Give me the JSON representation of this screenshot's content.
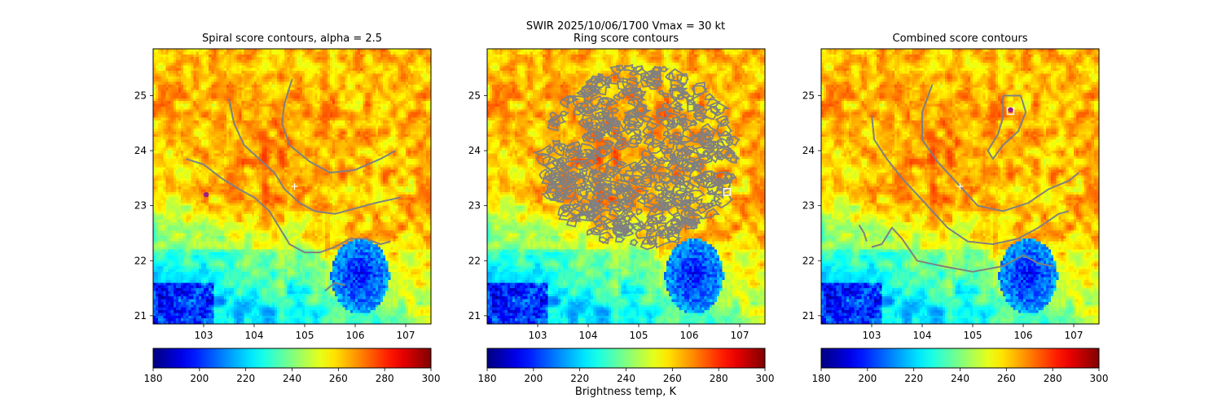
{
  "suptitle": "SWIR  2025/10/06/1700    Vmax = 30 kt",
  "colorbar_label": "Brightness temp, K",
  "chart_data": [
    {
      "type": "heatmap",
      "title": "Spiral score contours, alpha =  2.5",
      "xlim": [
        102.0,
        107.5
      ],
      "ylim": [
        20.85,
        25.85
      ],
      "x_ticks": [
        "103",
        "104",
        "105",
        "106",
        "107"
      ],
      "y_ticks": [
        "21",
        "22",
        "23",
        "24",
        "25"
      ],
      "contours": [
        [
          [
            103.5,
            24.95
          ],
          [
            103.6,
            24.5
          ],
          [
            103.8,
            24.1
          ],
          [
            104.1,
            23.85
          ],
          [
            104.4,
            23.6
          ],
          [
            104.6,
            23.3
          ],
          [
            104.9,
            23.05
          ],
          [
            105.2,
            22.9
          ],
          [
            105.6,
            22.85
          ],
          [
            106.0,
            22.95
          ],
          [
            106.4,
            23.05
          ],
          [
            106.9,
            23.15
          ]
        ],
        [
          [
            104.75,
            25.3
          ],
          [
            104.6,
            24.85
          ],
          [
            104.55,
            24.5
          ],
          [
            104.7,
            24.1
          ],
          [
            105.1,
            23.8
          ],
          [
            105.5,
            23.6
          ],
          [
            106.0,
            23.65
          ],
          [
            106.5,
            23.85
          ],
          [
            106.8,
            24.0
          ]
        ],
        [
          [
            102.65,
            23.85
          ],
          [
            103.0,
            23.75
          ],
          [
            103.35,
            23.5
          ],
          [
            103.7,
            23.3
          ],
          [
            104.0,
            23.15
          ],
          [
            104.3,
            22.9
          ],
          [
            104.5,
            22.6
          ],
          [
            104.7,
            22.3
          ],
          [
            105.0,
            22.15
          ],
          [
            105.3,
            22.15
          ],
          [
            105.6,
            22.25
          ],
          [
            105.9,
            22.4
          ],
          [
            106.2,
            22.4
          ],
          [
            106.5,
            22.3
          ],
          [
            106.7,
            22.35
          ]
        ],
        [
          [
            105.4,
            21.45
          ],
          [
            105.6,
            21.6
          ],
          [
            105.8,
            21.55
          ]
        ]
      ],
      "markers": [
        {
          "symbol": "plus",
          "x": 104.8,
          "y": 23.35,
          "color": "#ffffff"
        },
        {
          "symbol": "dot",
          "x": 103.05,
          "y": 23.2,
          "color": "#9b1d8a"
        }
      ]
    },
    {
      "type": "heatmap",
      "title": "Ring score contours",
      "xlim": [
        102.0,
        107.5
      ],
      "ylim": [
        20.85,
        25.85
      ],
      "x_ticks": [
        "103",
        "104",
        "105",
        "106",
        "107"
      ],
      "y_ticks": [
        "21",
        "22",
        "23",
        "24",
        "25"
      ],
      "ring_region": {
        "center": [
          105.0,
          23.9
        ],
        "radius_lon": 1.9,
        "radius_lat": 1.65
      },
      "markers": [
        {
          "symbol": "square",
          "x": 106.75,
          "y": 23.25,
          "color": "#ffffff"
        }
      ]
    },
    {
      "type": "heatmap",
      "title": "Combined score contours",
      "xlim": [
        102.0,
        107.5
      ],
      "ylim": [
        20.85,
        25.85
      ],
      "x_ticks": [
        "103",
        "104",
        "105",
        "106",
        "107"
      ],
      "y_ticks": [
        "21",
        "22",
        "23",
        "24",
        "25"
      ],
      "contours": [
        [
          [
            103.0,
            24.65
          ],
          [
            103.05,
            24.2
          ],
          [
            103.3,
            23.85
          ],
          [
            103.6,
            23.5
          ],
          [
            103.9,
            23.2
          ],
          [
            104.2,
            22.9
          ],
          [
            104.5,
            22.6
          ],
          [
            104.9,
            22.35
          ],
          [
            105.4,
            22.3
          ],
          [
            105.9,
            22.4
          ],
          [
            106.3,
            22.6
          ],
          [
            106.7,
            22.85
          ],
          [
            106.9,
            22.9
          ]
        ],
        [
          [
            104.2,
            25.2
          ],
          [
            104.0,
            24.7
          ],
          [
            104.0,
            24.2
          ],
          [
            104.3,
            23.8
          ],
          [
            104.7,
            23.4
          ],
          [
            105.1,
            23.0
          ],
          [
            105.6,
            22.9
          ],
          [
            106.1,
            23.05
          ],
          [
            106.5,
            23.3
          ],
          [
            106.9,
            23.45
          ],
          [
            107.1,
            23.6
          ]
        ],
        [
          [
            105.6,
            25.0
          ],
          [
            105.95,
            25.0
          ],
          [
            106.05,
            24.7
          ],
          [
            105.9,
            24.35
          ],
          [
            105.6,
            24.1
          ],
          [
            105.4,
            23.85
          ],
          [
            105.3,
            24.0
          ],
          [
            105.5,
            24.3
          ],
          [
            105.6,
            24.6
          ],
          [
            105.6,
            25.0
          ]
        ],
        [
          [
            102.75,
            22.65
          ],
          [
            102.85,
            22.5
          ],
          [
            102.9,
            22.35
          ]
        ],
        [
          [
            103.0,
            22.25
          ],
          [
            103.2,
            22.3
          ],
          [
            103.4,
            22.6
          ],
          [
            103.6,
            22.4
          ],
          [
            103.9,
            22.0
          ],
          [
            104.4,
            21.9
          ],
          [
            105.0,
            21.8
          ],
          [
            105.6,
            21.9
          ],
          [
            106.0,
            22.1
          ],
          [
            106.3,
            21.95
          ],
          [
            106.6,
            21.9
          ]
        ]
      ],
      "markers": [
        {
          "symbol": "plus",
          "x": 104.75,
          "y": 23.35,
          "color": "#ffffff"
        },
        {
          "symbol": "square",
          "x": 105.75,
          "y": 24.72,
          "color": "#ffffff"
        },
        {
          "symbol": "dot",
          "x": 105.75,
          "y": 24.74,
          "color": "#9b1d8a"
        }
      ]
    }
  ],
  "colorbar": {
    "vmin": 180,
    "vmax": 300,
    "colormap": "jet_r",
    "ticks": [
      "180",
      "200",
      "220",
      "240",
      "260",
      "280",
      "300"
    ]
  },
  "colors": {
    "contour": "#808080",
    "hot_blob": "#ff7a00",
    "background_cool": "#1a7aff"
  }
}
